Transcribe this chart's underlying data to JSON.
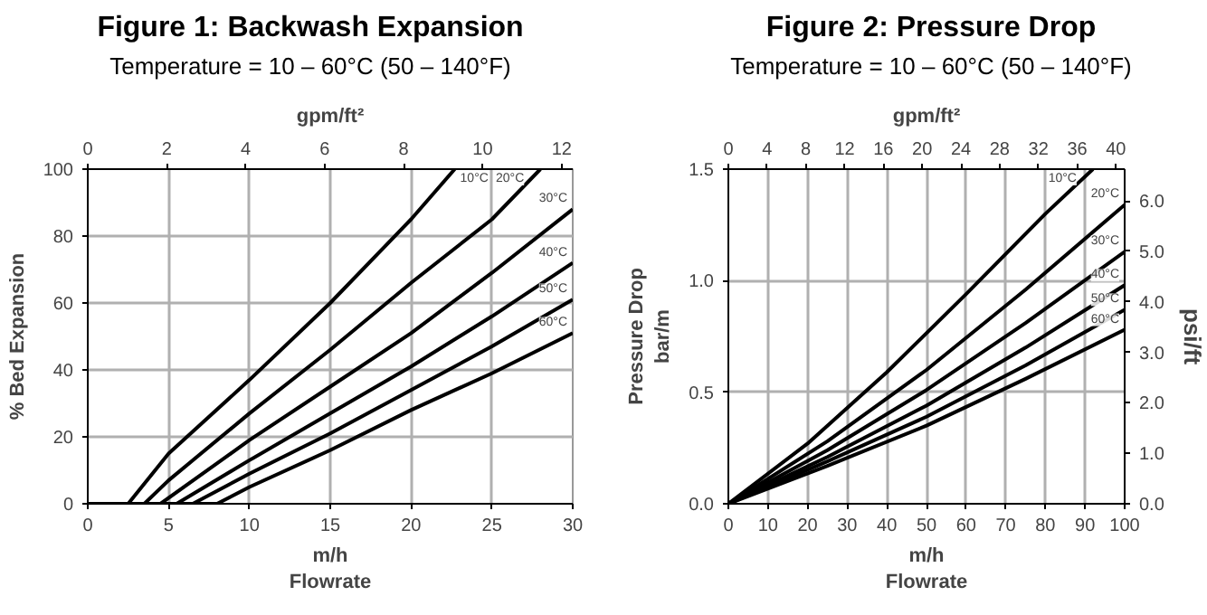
{
  "chart_data": [
    {
      "type": "line",
      "title": "Figure 1: Backwash Expansion",
      "subtitle": "Temperature = 10 – 60°C (50 – 140°F)",
      "xlabel": "m/h\nFlowrate",
      "ylabel": "% Bed Expansion",
      "x2label": "gpm/ft²",
      "xlim": [
        0,
        30
      ],
      "xticks": [
        0,
        5,
        10,
        15,
        20,
        25,
        30
      ],
      "ylim": [
        0,
        100
      ],
      "yticks": [
        0,
        20,
        40,
        60,
        80,
        100
      ],
      "x2lim": [
        0,
        12.28
      ],
      "x2ticks": [
        0,
        2,
        4,
        6,
        8,
        10,
        12
      ],
      "grid": true,
      "line_style": "solid",
      "marker": "none",
      "series": [
        {
          "name": "10°C",
          "color": "#000000",
          "x": [
            0,
            2.5,
            5,
            10,
            15,
            20,
            22.7
          ],
          "values": [
            0,
            0,
            15,
            37,
            60,
            85,
            100
          ]
        },
        {
          "name": "20°C",
          "color": "#000000",
          "x": [
            0,
            3.5,
            5,
            10,
            15,
            20,
            25,
            28
          ],
          "values": [
            0,
            0,
            7,
            27,
            46,
            66,
            85,
            100
          ]
        },
        {
          "name": "30°C",
          "color": "#000000",
          "x": [
            0,
            4.5,
            10,
            15,
            20,
            25,
            30
          ],
          "values": [
            0,
            0,
            19,
            35,
            51,
            69,
            88
          ]
        },
        {
          "name": "40°C",
          "color": "#000000",
          "x": [
            0,
            5.5,
            10,
            15,
            20,
            25,
            30
          ],
          "values": [
            0,
            0,
            13,
            27,
            41,
            56,
            72
          ]
        },
        {
          "name": "50°C",
          "color": "#000000",
          "x": [
            0,
            6.5,
            10,
            15,
            20,
            25,
            30
          ],
          "values": [
            0,
            0,
            9,
            21,
            34,
            47,
            61
          ]
        },
        {
          "name": "60°C",
          "color": "#000000",
          "x": [
            0,
            8,
            10,
            15,
            20,
            25,
            30
          ],
          "values": [
            0,
            0,
            5,
            16,
            28,
            39,
            51
          ]
        }
      ]
    },
    {
      "type": "line",
      "title": "Figure 2: Pressure Drop",
      "subtitle": "Temperature = 10 – 60°C (50 – 140°F)",
      "xlabel": "m/h\nFlowrate",
      "ylabel": "Pressure Drop\nbar/m",
      "y2label": "psi/ft",
      "x2label": "gpm/ft²",
      "xlim": [
        0,
        100
      ],
      "xticks": [
        0,
        10,
        20,
        30,
        40,
        50,
        60,
        70,
        80,
        90,
        100
      ],
      "ylim": [
        0,
        1.5
      ],
      "yticks": [
        {
          "value": 0,
          "label": "0.0"
        },
        {
          "value": 0.5,
          "label": "0.5"
        },
        {
          "value": 1,
          "label": "1.0"
        },
        {
          "value": 1.5,
          "label": "1.5"
        }
      ],
      "x2lim": [
        0,
        40.9
      ],
      "x2ticks": [
        0,
        4,
        8,
        12,
        16,
        20,
        24,
        28,
        32,
        36,
        40
      ],
      "y2lim": [
        0,
        6.63
      ],
      "y2ticks": [
        {
          "value": 0,
          "label": "0.0"
        },
        {
          "value": 1,
          "label": "1.0"
        },
        {
          "value": 2,
          "label": "2.0"
        },
        {
          "value": 3,
          "label": "3.0"
        },
        {
          "value": 4,
          "label": "4.0"
        },
        {
          "value": 5,
          "label": "5.0"
        },
        {
          "value": 6,
          "label": "6.0"
        }
      ],
      "grid": true,
      "line_style": "solid",
      "marker": "none",
      "series": [
        {
          "name": "10°C",
          "color": "#000000",
          "x": [
            0,
            20,
            40,
            60,
            80,
            92
          ],
          "values": [
            0,
            0.27,
            0.59,
            0.94,
            1.3,
            1.5
          ]
        },
        {
          "name": "20°C",
          "color": "#000000",
          "x": [
            0,
            25,
            50,
            75,
            100
          ],
          "values": [
            0,
            0.28,
            0.6,
            0.96,
            1.34
          ]
        },
        {
          "name": "30°C",
          "color": "#000000",
          "x": [
            0,
            25,
            50,
            75,
            100
          ],
          "values": [
            0,
            0.24,
            0.51,
            0.81,
            1.13
          ]
        },
        {
          "name": "40°C",
          "color": "#000000",
          "x": [
            0,
            25,
            50,
            75,
            100
          ],
          "values": [
            0,
            0.21,
            0.44,
            0.7,
            0.98
          ]
        },
        {
          "name": "50°C",
          "color": "#000000",
          "x": [
            0,
            25,
            50,
            75,
            100
          ],
          "values": [
            0,
            0.19,
            0.39,
            0.62,
            0.87
          ]
        },
        {
          "name": "60°C",
          "color": "#000000",
          "x": [
            0,
            25,
            50,
            75,
            100
          ],
          "values": [
            0,
            0.17,
            0.35,
            0.56,
            0.78
          ]
        }
      ]
    }
  ]
}
